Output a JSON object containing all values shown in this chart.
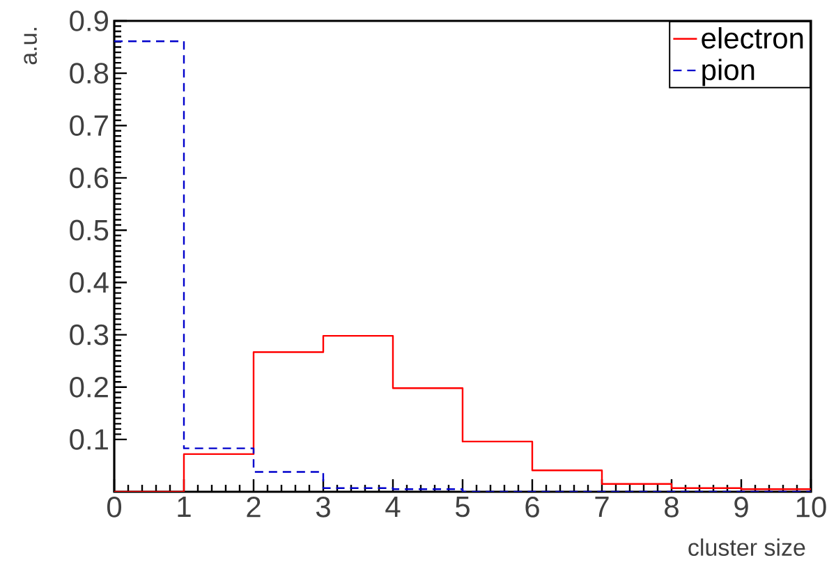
{
  "chart_data": {
    "type": "histogram",
    "xlabel": "cluster size",
    "ylabel": "a.u.",
    "bins": [
      0,
      1,
      2,
      3,
      4,
      5,
      6,
      7,
      8,
      9,
      10
    ],
    "series": [
      {
        "name": "electron",
        "color": "#ff0000",
        "line_style": "solid",
        "values": [
          0,
          0.072,
          0.267,
          0.298,
          0.198,
          0.096,
          0.041,
          0.015,
          0.007,
          0.005
        ]
      },
      {
        "name": "pion",
        "color": "#0000cc",
        "line_style": "dashed",
        "values": [
          0.861,
          0.083,
          0.038,
          0.007,
          0.005,
          0,
          0,
          0,
          0,
          0
        ]
      }
    ],
    "xlim": [
      0,
      10
    ],
    "ylim": [
      0,
      0.9
    ],
    "xticks": [
      0,
      1,
      2,
      3,
      4,
      5,
      6,
      7,
      8,
      9,
      10
    ],
    "yticks": [
      0.1,
      0.2,
      0.3,
      0.4,
      0.5,
      0.6,
      0.7,
      0.8,
      0.9
    ],
    "grid": false,
    "legend": "top right"
  }
}
